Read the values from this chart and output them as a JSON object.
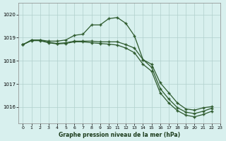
{
  "title": "Graphe pression niveau de la mer (hPa)",
  "bg_color": "#d8f0ee",
  "grid_color": "#b0d0cc",
  "line_color": "#2d5a2d",
  "xlim": [
    -0.5,
    23
  ],
  "ylim": [
    1015.3,
    1020.5
  ],
  "yticks": [
    1016,
    1017,
    1018,
    1019,
    1020
  ],
  "xticks": [
    0,
    1,
    2,
    3,
    4,
    5,
    6,
    7,
    8,
    9,
    10,
    11,
    12,
    13,
    14,
    15,
    16,
    17,
    18,
    19,
    20,
    21,
    22,
    23
  ],
  "line1": [
    1018.7,
    1018.9,
    1018.9,
    1018.85,
    1018.85,
    1018.9,
    1019.1,
    1019.15,
    1019.55,
    1019.55,
    1019.82,
    1019.87,
    1019.62,
    1019.08,
    1018.05,
    1017.85,
    1017.05,
    1016.62,
    1016.18,
    1015.92,
    1015.87,
    1015.97,
    1016.02
  ],
  "line2": [
    1018.7,
    1018.88,
    1018.88,
    1018.8,
    1018.75,
    1018.78,
    1018.85,
    1018.85,
    1018.85,
    1018.82,
    1018.82,
    1018.82,
    1018.7,
    1018.55,
    1018.05,
    1017.72,
    1016.8,
    1016.35,
    1015.98,
    1015.78,
    1015.72,
    1015.82,
    1015.95
  ],
  "line3": [
    1018.7,
    1018.87,
    1018.87,
    1018.78,
    1018.73,
    1018.75,
    1018.82,
    1018.82,
    1018.78,
    1018.75,
    1018.72,
    1018.68,
    1018.55,
    1018.35,
    1017.85,
    1017.55,
    1016.62,
    1016.18,
    1015.85,
    1015.65,
    1015.58,
    1015.68,
    1015.82
  ]
}
